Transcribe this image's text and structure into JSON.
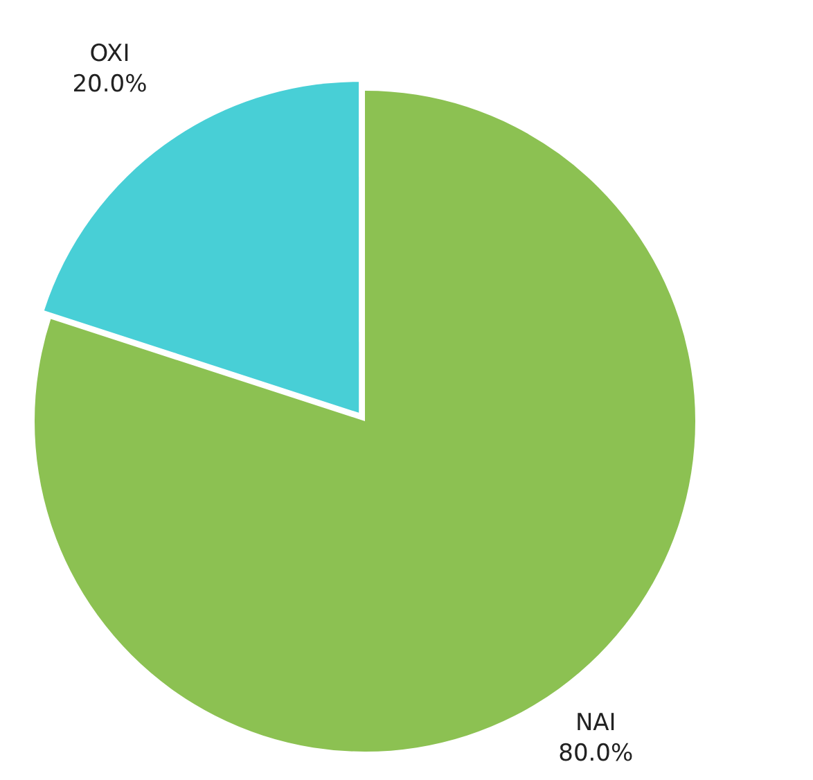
{
  "chart_data": {
    "type": "pie",
    "categories": [
      "NAI",
      "OXI"
    ],
    "values": [
      80,
      20
    ],
    "colors": [
      "#8cc152",
      "#48cfd6"
    ],
    "value_labels": [
      "80.0%",
      "20.0%"
    ],
    "legend": false
  }
}
